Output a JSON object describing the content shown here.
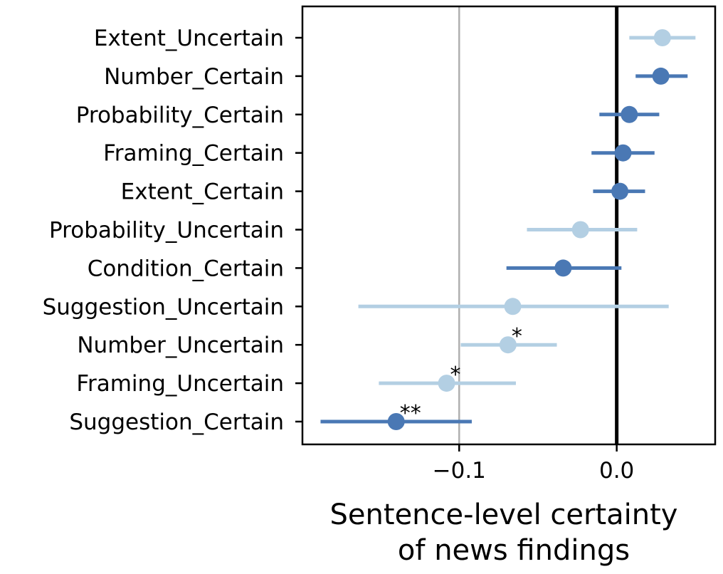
{
  "chart_data": {
    "type": "scatter",
    "subtype": "dot-and-whisker",
    "xlabel_lines": [
      "Sentence-level certainty",
      "of news findings"
    ],
    "xlim": [
      -0.1995,
      0.0625
    ],
    "xticks": [
      -0.1,
      0.0
    ],
    "xtick_labels": [
      "−0.1",
      "0.0"
    ],
    "reference_lines": [
      {
        "x": -0.1,
        "color": "#b0b0b0"
      },
      {
        "x": 0.0,
        "color": "#000000"
      }
    ],
    "colors": {
      "certain": "#4a78b4",
      "uncertain": "#b3cfe3"
    },
    "grid": false,
    "legend": "none",
    "points": [
      {
        "category": "Extent_Uncertain",
        "group": "uncertain",
        "estimate": 0.029,
        "ci": [
          0.008,
          0.05
        ],
        "significance": ""
      },
      {
        "category": "Number_Certain",
        "group": "certain",
        "estimate": 0.028,
        "ci": [
          0.012,
          0.045
        ],
        "significance": ""
      },
      {
        "category": "Probability_Certain",
        "group": "certain",
        "estimate": 0.008,
        "ci": [
          -0.011,
          0.027
        ],
        "significance": ""
      },
      {
        "category": "Framing_Certain",
        "group": "certain",
        "estimate": 0.004,
        "ci": [
          -0.016,
          0.024
        ],
        "significance": ""
      },
      {
        "category": "Extent_Certain",
        "group": "certain",
        "estimate": 0.002,
        "ci": [
          -0.015,
          0.018
        ],
        "significance": ""
      },
      {
        "category": "Probability_Uncertain",
        "group": "uncertain",
        "estimate": -0.023,
        "ci": [
          -0.057,
          0.013
        ],
        "significance": ""
      },
      {
        "category": "Condition_Certain",
        "group": "certain",
        "estimate": -0.034,
        "ci": [
          -0.07,
          0.003
        ],
        "significance": ""
      },
      {
        "category": "Suggestion_Uncertain",
        "group": "uncertain",
        "estimate": -0.066,
        "ci": [
          -0.164,
          0.033
        ],
        "significance": ""
      },
      {
        "category": "Number_Uncertain",
        "group": "uncertain",
        "estimate": -0.069,
        "ci": [
          -0.099,
          -0.038
        ],
        "significance": "*"
      },
      {
        "category": "Framing_Uncertain",
        "group": "uncertain",
        "estimate": -0.108,
        "ci": [
          -0.151,
          -0.064
        ],
        "significance": "*"
      },
      {
        "category": "Suggestion_Certain",
        "group": "certain",
        "estimate": -0.14,
        "ci": [
          -0.188,
          -0.092
        ],
        "significance": "**"
      }
    ]
  }
}
